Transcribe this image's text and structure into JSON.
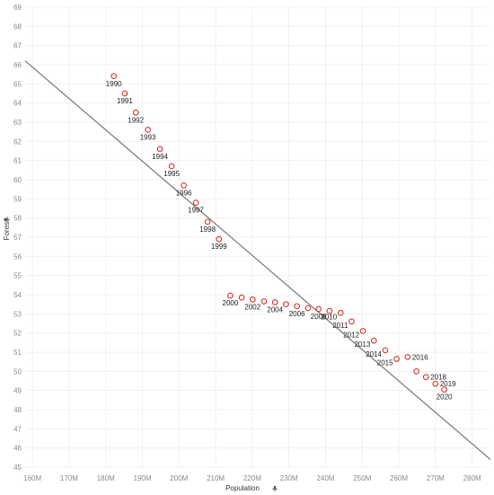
{
  "chart_data": {
    "type": "scatter",
    "xlabel": "Population",
    "ylabel": "Forest",
    "x_unit_suffix": "M",
    "xlim": [
      158,
      285
    ],
    "ylim": [
      45,
      69
    ],
    "x_ticks": [
      160,
      170,
      180,
      190,
      200,
      210,
      220,
      230,
      240,
      250,
      260,
      270,
      280
    ],
    "y_ticks": [
      45,
      46,
      47,
      48,
      49,
      50,
      51,
      52,
      53,
      54,
      55,
      56,
      57,
      58,
      59,
      60,
      61,
      62,
      63,
      64,
      65,
      66,
      67,
      68,
      69
    ],
    "x_tick_labels": [
      "160M",
      "170M",
      "180M",
      "190M",
      "200M",
      "210M",
      "220M",
      "230M",
      "240M",
      "250M",
      "260M",
      "270M",
      "280M"
    ],
    "y_tick_labels": [
      "45",
      "46",
      "47",
      "48",
      "49",
      "50",
      "51",
      "52",
      "53",
      "54",
      "55",
      "56",
      "57",
      "58",
      "59",
      "60",
      "61",
      "62",
      "63",
      "64",
      "65",
      "66",
      "67",
      "68",
      "69"
    ],
    "grid": true,
    "points": [
      {
        "x": 182.2,
        "y": 65.4,
        "label": "1990"
      },
      {
        "x": 185.2,
        "y": 64.5,
        "label": "1991"
      },
      {
        "x": 188.2,
        "y": 63.5,
        "label": "1992"
      },
      {
        "x": 191.5,
        "y": 62.6,
        "label": "1993"
      },
      {
        "x": 194.8,
        "y": 61.6,
        "label": "1994"
      },
      {
        "x": 198.0,
        "y": 60.7,
        "label": "1995"
      },
      {
        "x": 201.3,
        "y": 59.7,
        "label": "1996"
      },
      {
        "x": 204.6,
        "y": 58.8,
        "label": "1997"
      },
      {
        "x": 207.8,
        "y": 57.8,
        "label": "1998"
      },
      {
        "x": 210.9,
        "y": 56.9,
        "label": "1999"
      },
      {
        "x": 214.0,
        "y": 53.95,
        "label": "2000"
      },
      {
        "x": 217.1,
        "y": 53.85,
        "label": ""
      },
      {
        "x": 220.1,
        "y": 53.75,
        "label": "2002"
      },
      {
        "x": 223.2,
        "y": 53.65,
        "label": ""
      },
      {
        "x": 226.2,
        "y": 53.6,
        "label": "2004"
      },
      {
        "x": 229.2,
        "y": 53.5,
        "label": ""
      },
      {
        "x": 232.2,
        "y": 53.4,
        "label": "2006"
      },
      {
        "x": 235.2,
        "y": 53.3,
        "label": ""
      },
      {
        "x": 238.1,
        "y": 53.25,
        "label": "2008"
      },
      {
        "x": 241.1,
        "y": 53.15,
        "label": ""
      },
      {
        "x": 244.1,
        "y": 53.05,
        "label": "2010"
      },
      {
        "x": 247.1,
        "y": 52.6,
        "label": "2011"
      },
      {
        "x": 250.2,
        "y": 52.1,
        "label": "2012"
      },
      {
        "x": 253.2,
        "y": 51.6,
        "label": "2013"
      },
      {
        "x": 256.3,
        "y": 51.1,
        "label": "2014"
      },
      {
        "x": 259.4,
        "y": 50.65,
        "label": "2015"
      },
      {
        "x": 262.4,
        "y": 50.75,
        "label": "2016"
      },
      {
        "x": 264.8,
        "y": 50.0,
        "label": ""
      },
      {
        "x": 267.4,
        "y": 49.7,
        "label": "2018"
      },
      {
        "x": 270.0,
        "y": 49.35,
        "label": "2019"
      },
      {
        "x": 272.4,
        "y": 49.05,
        "label": "2020"
      }
    ],
    "trend_line": {
      "x": [
        158,
        285
      ],
      "y": [
        66.2,
        45.4
      ]
    },
    "colors": {
      "point": "#d9342b",
      "trend": "#808080",
      "grid": "#f0f0f0",
      "tick": "#8a8a8a"
    }
  }
}
